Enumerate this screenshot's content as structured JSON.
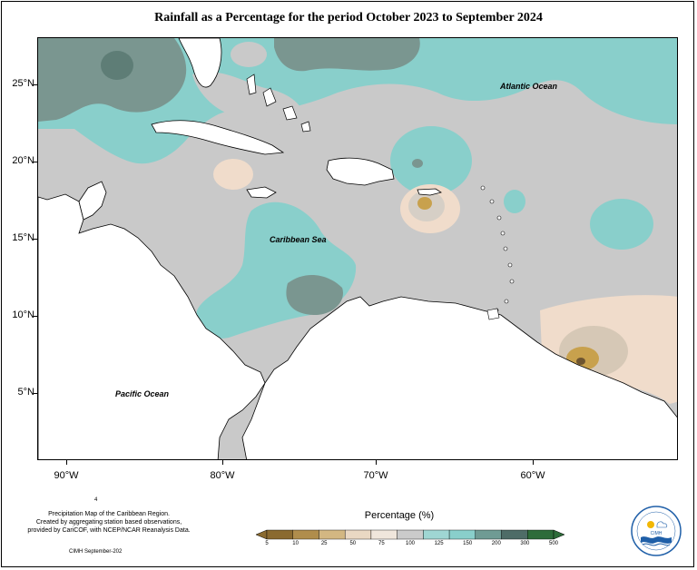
{
  "title": "Rainfall as a Percentage for the period October 2023 to September 2024",
  "map": {
    "labels": {
      "atlantic": "Atlantic Ocean",
      "caribbean": "Caribbean Sea",
      "pacific": "Pacific Ocean"
    },
    "lat_labels": [
      "25°N",
      "20°N",
      "15°N",
      "10°N",
      "5°N"
    ],
    "lon_labels": [
      "90°W",
      "80°W",
      "70°W",
      "60°W"
    ],
    "colors": {
      "land": "#ffffff",
      "normal_gray": "#c9c9c9",
      "teal_above": "#89cfcb",
      "dark_gray_green": "#7a9690",
      "beige_below": "#f0dccb",
      "tan": "#d6b98e",
      "gold": "#c8a14d"
    }
  },
  "legend": {
    "title": "Percentage (%)",
    "ticks": [
      "5",
      "10",
      "25",
      "50",
      "75",
      "100",
      "125",
      "150",
      "200",
      "300",
      "500"
    ],
    "colors": [
      "#8a6a30",
      "#b08d4c",
      "#d3b782",
      "#ead8c3",
      "#f0e6dc",
      "#cbcbcb",
      "#9fd6d3",
      "#89cfcb",
      "#6f9b94",
      "#4e6c67",
      "#2e6c3a"
    ]
  },
  "footer": {
    "line1": "Precipitation Map of the Caribbean Region.",
    "line2": "Created by aggregating station based observations,",
    "line3": "provided by CariCOF, with NCEP/NCAR Reanalysis Data.",
    "stamp": "CIMH September-202",
    "mark": "4"
  },
  "logo": {
    "text": "CIMH"
  }
}
